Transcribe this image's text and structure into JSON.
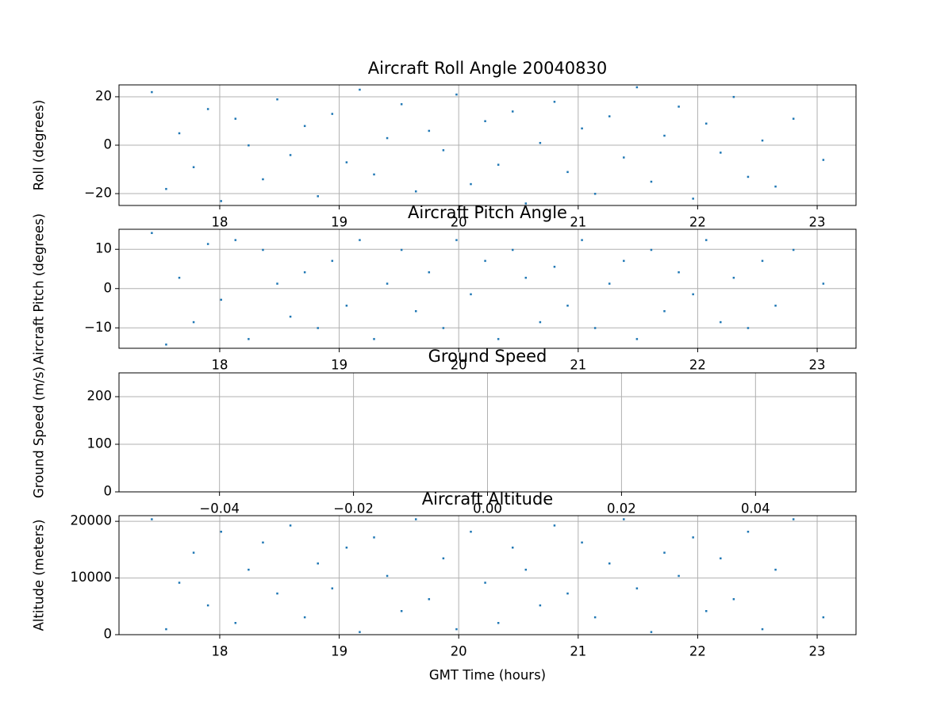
{
  "chart_data": [
    {
      "type": "scatter",
      "title": "Aircraft Roll Angle 20040830",
      "ylabel": "Roll (degrees)",
      "color": "#1f77b4",
      "grid": true,
      "x": [
        17.43,
        17.55,
        17.66,
        17.78,
        17.9,
        18.01,
        18.13,
        18.24,
        18.36,
        18.48,
        18.59,
        18.71,
        18.82,
        18.94,
        19.06,
        19.17,
        19.29,
        19.4,
        19.52,
        19.64,
        19.75,
        19.87,
        19.98,
        20.1,
        20.22,
        20.33,
        20.45,
        20.56,
        20.68,
        20.8,
        20.91,
        21.03,
        21.14,
        21.26,
        21.38,
        21.49,
        21.61,
        21.72,
        21.84,
        21.96,
        22.07,
        22.19,
        22.3,
        22.42,
        22.54,
        22.65,
        22.8,
        23.05
      ],
      "values": [
        22,
        -18,
        5,
        -9,
        15,
        -23,
        11,
        0,
        -14,
        19,
        -4,
        8,
        -21,
        13,
        -7,
        23,
        -12,
        3,
        17,
        -19,
        6,
        -2,
        21,
        -16,
        10,
        -8,
        14,
        -24,
        1,
        18,
        -11,
        7,
        -20,
        12,
        -5,
        24,
        -15,
        4,
        16,
        -22,
        9,
        -3,
        20,
        -13,
        2,
        -17,
        11,
        -6
      ],
      "xlim": [
        17.157,
        23.325
      ],
      "xticks": [
        18,
        19,
        20,
        21,
        22,
        23
      ],
      "ylim": [
        -24.9,
        24.9
      ],
      "yticks": [
        {
          "value": -20,
          "label": "−20"
        },
        0,
        20
      ]
    },
    {
      "type": "scatter",
      "title": "Aircraft Pitch Angle",
      "ylabel": "Aircraft Pitch (degrees)",
      "color": "#1f77b4",
      "grid": true,
      "x": [
        17.43,
        17.55,
        17.66,
        17.78,
        17.9,
        18.01,
        18.13,
        18.24,
        18.36,
        18.48,
        18.59,
        18.71,
        18.82,
        18.94,
        19.06,
        19.17,
        19.29,
        19.4,
        19.52,
        19.64,
        19.75,
        19.87,
        19.98,
        20.1,
        20.22,
        20.33,
        20.45,
        20.56,
        20.68,
        20.8,
        20.91,
        21.03,
        21.14,
        21.26,
        21.38,
        21.49,
        21.61,
        21.72,
        21.84,
        21.96,
        22.07,
        22.19,
        22.3,
        22.42,
        22.54,
        22.65,
        22.8,
        23.05
      ],
      "values": [
        14.2,
        -14.2,
        2.8,
        -8.5,
        11.4,
        -2.8,
        12.4,
        -12.8,
        9.9,
        1.3,
        -7.1,
        4.2,
        -10,
        7.1,
        -4.3,
        12.4,
        -12.8,
        1.3,
        9.9,
        -5.7,
        4.2,
        -10,
        12.4,
        -1.4,
        7.1,
        -12.8,
        9.9,
        2.8,
        -8.5,
        5.6,
        -4.3,
        12.4,
        -10,
        1.3,
        7.1,
        -12.8,
        9.9,
        -5.7,
        4.2,
        -1.4,
        12.4,
        -8.5,
        2.8,
        -10,
        7.1,
        -4.3,
        9.9,
        1.3
      ],
      "xlim": [
        17.157,
        23.325
      ],
      "xticks": [
        18,
        19,
        20,
        21,
        22,
        23
      ],
      "ylim": [
        -15.2,
        15.1
      ],
      "yticks": [
        {
          "value": -10,
          "label": "−10"
        },
        0,
        10
      ]
    },
    {
      "type": "scatter",
      "title": "Ground Speed",
      "ylabel": "Ground Speed (m/s)",
      "color": "#1f77b4",
      "grid": true,
      "xlim": [
        -0.055,
        0.055
      ],
      "xticks": [
        {
          "value": -0.04,
          "label": "−0.04"
        },
        {
          "value": -0.02,
          "label": "−0.02"
        },
        {
          "value": 0,
          "label": "0.00"
        },
        0.02,
        0.04
      ],
      "ylim": [
        0,
        250
      ],
      "yticks": [
        0,
        100,
        200
      ]
    },
    {
      "type": "scatter",
      "title": "Aircraft Altitude",
      "ylabel": "Altitude (meters)",
      "xlabel": "GMT Time (hours)",
      "color": "#1f77b4",
      "grid": true,
      "x": [
        17.43,
        17.55,
        17.66,
        17.78,
        17.9,
        18.01,
        18.13,
        18.24,
        18.36,
        18.48,
        18.59,
        18.71,
        18.82,
        18.94,
        19.06,
        19.17,
        19.29,
        19.4,
        19.52,
        19.64,
        19.75,
        19.87,
        19.98,
        20.1,
        20.22,
        20.33,
        20.45,
        20.56,
        20.68,
        20.8,
        20.91,
        21.03,
        21.14,
        21.26,
        21.38,
        21.49,
        21.61,
        21.72,
        21.84,
        21.96,
        22.07,
        22.19,
        22.3,
        22.42,
        22.54,
        22.65,
        22.8,
        23.05
      ],
      "values": [
        20400,
        1000,
        9200,
        14500,
        5200,
        18200,
        2100,
        11500,
        16300,
        7300,
        19300,
        3100,
        12600,
        8200,
        15400,
        500,
        17200,
        10400,
        4200,
        20400,
        6300,
        13500,
        1000,
        18200,
        9200,
        2100,
        15400,
        11500,
        5200,
        19300,
        7300,
        16300,
        3100,
        12600,
        20400,
        8200,
        500,
        14500,
        10400,
        17200,
        4200,
        13500,
        6300,
        18200,
        1000,
        11500,
        20400,
        3100
      ],
      "xlim": [
        17.157,
        23.325
      ],
      "xticks": [
        18,
        19,
        20,
        21,
        22,
        23
      ],
      "ylim": [
        0,
        21000
      ],
      "yticks": [
        0,
        10000,
        20000
      ]
    }
  ]
}
